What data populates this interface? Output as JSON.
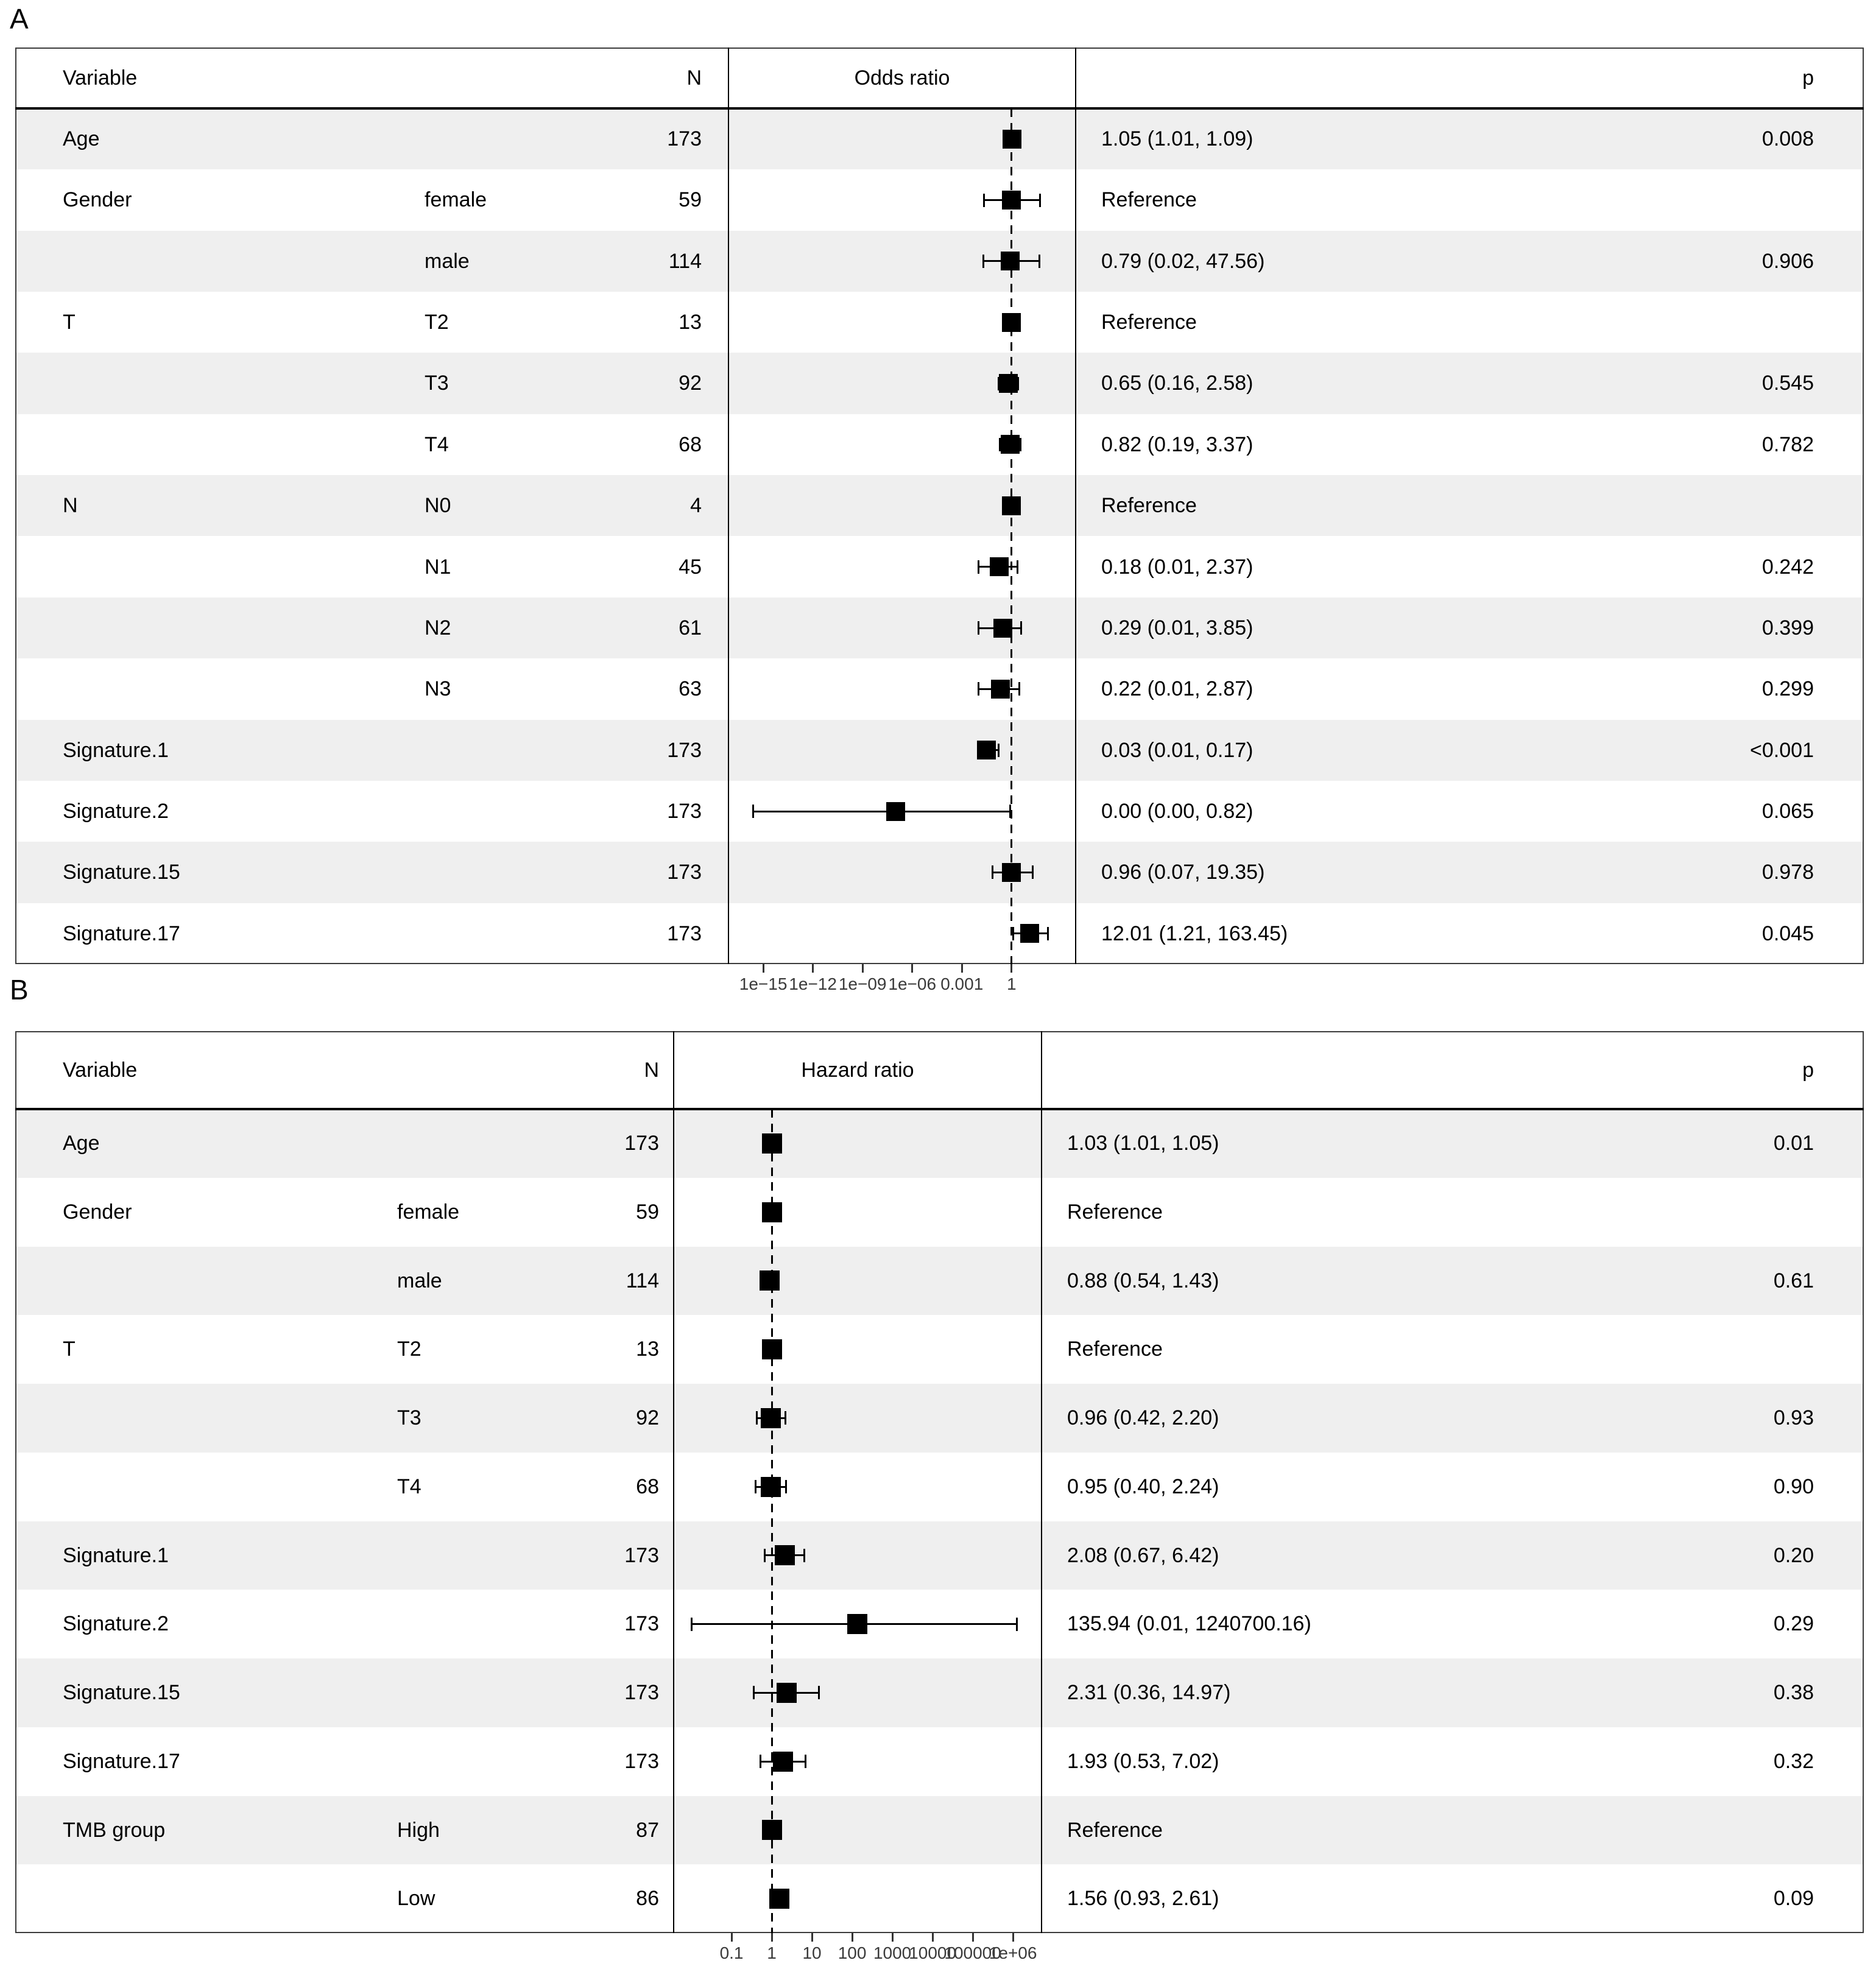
{
  "figure": {
    "background": "#ffffff"
  },
  "colors": {
    "marker": "#000000",
    "whisker": "#000000",
    "reference_line": "#000000",
    "row_shading": "#efefef",
    "table_border": "#3c3c3c",
    "column_divider": "#000000",
    "header_rule": "#000000",
    "text": "#000000",
    "tick": "#333333",
    "tick_label": "#3a3a3a"
  },
  "chart_data": [
    {
      "type": "scatter",
      "subtype": "forest-plot",
      "panel_label": "A",
      "effect_label": "Odds ratio",
      "columns": {
        "variable": "Variable",
        "n": "N",
        "p": "p"
      },
      "x_axis": {
        "scale": "log10",
        "range_log10": [
          -17.1,
          3.87
        ],
        "tick_values": [
          1e-15,
          1e-12,
          1e-09,
          1e-06,
          0.001,
          1
        ],
        "tick_labels": [
          "1e−15",
          "1e−12",
          "1e−09",
          "1e−06",
          "0.001",
          "1"
        ],
        "reference": 1,
        "grid": false
      },
      "legend": null,
      "rows": [
        {
          "variable": "Age",
          "level": "",
          "n": "173",
          "estimate": "1.05 (1.01, 1.09)",
          "p": "0.008",
          "est": 1.05,
          "lo": 1.01,
          "hi": 1.09,
          "reference": false
        },
        {
          "variable": "Gender",
          "level": "female",
          "n": "59",
          "estimate": "Reference",
          "p": "",
          "est": 1.0,
          "lo": 0.022,
          "hi": 52,
          "reference": true
        },
        {
          "variable": "",
          "level": "male",
          "n": "114",
          "estimate": "0.79 (0.02, 47.56)",
          "p": "0.906",
          "est": 0.79,
          "lo": 0.02,
          "hi": 47.56,
          "reference": false
        },
        {
          "variable": "T",
          "level": "T2",
          "n": "13",
          "estimate": "Reference",
          "p": "",
          "est": 1,
          "lo": 1,
          "hi": 1,
          "reference": true
        },
        {
          "variable": "",
          "level": "T3",
          "n": "92",
          "estimate": "0.65 (0.16, 2.58)",
          "p": "0.545",
          "est": 0.65,
          "lo": 0.16,
          "hi": 2.58,
          "reference": false
        },
        {
          "variable": "",
          "level": "T4",
          "n": "68",
          "estimate": "0.82 (0.19, 3.37)",
          "p": "0.782",
          "est": 0.82,
          "lo": 0.19,
          "hi": 3.37,
          "reference": false
        },
        {
          "variable": "N",
          "level": "N0",
          "n": "4",
          "estimate": "Reference",
          "p": "",
          "est": 1,
          "lo": 1,
          "hi": 1,
          "reference": true
        },
        {
          "variable": "",
          "level": "N1",
          "n": "45",
          "estimate": "0.18 (0.01, 2.37)",
          "p": "0.242",
          "est": 0.18,
          "lo": 0.01,
          "hi": 2.37,
          "reference": false
        },
        {
          "variable": "",
          "level": "N2",
          "n": "61",
          "estimate": "0.29 (0.01, 3.85)",
          "p": "0.399",
          "est": 0.29,
          "lo": 0.01,
          "hi": 3.85,
          "reference": false
        },
        {
          "variable": "",
          "level": "N3",
          "n": "63",
          "estimate": "0.22 (0.01, 2.87)",
          "p": "0.299",
          "est": 0.22,
          "lo": 0.01,
          "hi": 2.87,
          "reference": false
        },
        {
          "variable": "Signature.1",
          "level": "",
          "n": "173",
          "estimate": "0.03 (0.01, 0.17)",
          "p": "<0.001",
          "est": 0.03,
          "lo": 0.01,
          "hi": 0.17,
          "reference": false
        },
        {
          "variable": "Signature.2",
          "level": "",
          "n": "173",
          "estimate": "0.00 (0.00, 0.82)",
          "p": "0.065",
          "est": 1e-07,
          "lo": 2.5e-16,
          "hi": 0.82,
          "reference": false
        },
        {
          "variable": "Signature.15",
          "level": "",
          "n": "173",
          "estimate": "0.96 (0.07, 19.35)",
          "p": "0.978",
          "est": 0.96,
          "lo": 0.07,
          "hi": 19.35,
          "reference": false
        },
        {
          "variable": "Signature.17",
          "level": "",
          "n": "173",
          "estimate": "12.01 (1.21, 163.45)",
          "p": "0.045",
          "est": 12.01,
          "lo": 1.21,
          "hi": 163.45,
          "reference": false
        }
      ]
    },
    {
      "type": "scatter",
      "subtype": "forest-plot",
      "panel_label": "B",
      "effect_label": "Hazard ratio",
      "columns": {
        "variable": "Variable",
        "n": "N",
        "p": "p"
      },
      "x_axis": {
        "scale": "log10",
        "range_log10": [
          -2.44,
          6.71
        ],
        "tick_values": [
          0.1,
          1,
          10,
          100,
          1000,
          10000,
          100000,
          1000000
        ],
        "tick_labels": [
          "0.1",
          "1",
          "10",
          "100",
          "1000",
          "10000",
          "100000",
          "1e+06"
        ],
        "reference": 1,
        "grid": false
      },
      "legend": null,
      "rows": [
        {
          "variable": "Age",
          "level": "",
          "n": "173",
          "estimate": "1.03 (1.01, 1.05)",
          "p": "0.01",
          "est": 1.03,
          "lo": 1.01,
          "hi": 1.05,
          "reference": false
        },
        {
          "variable": "Gender",
          "level": "female",
          "n": "59",
          "estimate": "Reference",
          "p": "",
          "est": 1,
          "lo": 1,
          "hi": 1,
          "reference": true
        },
        {
          "variable": "",
          "level": "male",
          "n": "114",
          "estimate": "0.88 (0.54, 1.43)",
          "p": "0.61",
          "est": 0.88,
          "lo": 0.54,
          "hi": 1.43,
          "reference": false
        },
        {
          "variable": "T",
          "level": "T2",
          "n": "13",
          "estimate": "Reference",
          "p": "",
          "est": 1,
          "lo": 1,
          "hi": 1,
          "reference": true
        },
        {
          "variable": "",
          "level": "T3",
          "n": "92",
          "estimate": "0.96 (0.42, 2.20)",
          "p": "0.93",
          "est": 0.96,
          "lo": 0.42,
          "hi": 2.2,
          "reference": false
        },
        {
          "variable": "",
          "level": "T4",
          "n": "68",
          "estimate": "0.95 (0.40, 2.24)",
          "p": "0.90",
          "est": 0.95,
          "lo": 0.4,
          "hi": 2.24,
          "reference": false
        },
        {
          "variable": "Signature.1",
          "level": "",
          "n": "173",
          "estimate": "2.08 (0.67, 6.42)",
          "p": "0.20",
          "est": 2.08,
          "lo": 0.67,
          "hi": 6.42,
          "reference": false
        },
        {
          "variable": "Signature.2",
          "level": "",
          "n": "173",
          "estimate": "135.94 (0.01, 1240700.16)",
          "p": "0.29",
          "est": 135.94,
          "lo": 0.01,
          "hi": 1240700.16,
          "reference": false
        },
        {
          "variable": "Signature.15",
          "level": "",
          "n": "173",
          "estimate": "2.31 (0.36, 14.97)",
          "p": "0.38",
          "est": 2.31,
          "lo": 0.36,
          "hi": 14.97,
          "reference": false
        },
        {
          "variable": "Signature.17",
          "level": "",
          "n": "173",
          "estimate": "1.93 (0.53, 7.02)",
          "p": "0.32",
          "est": 1.93,
          "lo": 0.53,
          "hi": 7.02,
          "reference": false
        },
        {
          "variable": "TMB group",
          "level": "High",
          "n": "87",
          "estimate": "Reference",
          "p": "",
          "est": 1,
          "lo": 1,
          "hi": 1,
          "reference": true
        },
        {
          "variable": "",
          "level": "Low",
          "n": "86",
          "estimate": "1.56 (0.93, 2.61)",
          "p": "0.09",
          "est": 1.56,
          "lo": 0.93,
          "hi": 2.61,
          "reference": false
        }
      ]
    }
  ]
}
